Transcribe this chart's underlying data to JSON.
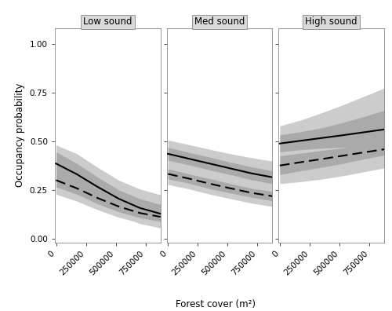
{
  "panels": [
    {
      "title": "Low sound",
      "solid_line": [
        0.385,
        0.33,
        0.265,
        0.205,
        0.158,
        0.128
      ],
      "solid_ci_upper": [
        0.445,
        0.385,
        0.315,
        0.25,
        0.205,
        0.175
      ],
      "solid_ci_lower": [
        0.33,
        0.28,
        0.22,
        0.165,
        0.115,
        0.088
      ],
      "solid_ci2_upper": [
        0.48,
        0.435,
        0.365,
        0.3,
        0.255,
        0.225
      ],
      "solid_ci2_lower": [
        0.285,
        0.235,
        0.175,
        0.12,
        0.078,
        0.055
      ],
      "dashed_line": [
        0.3,
        0.258,
        0.208,
        0.165,
        0.132,
        0.112
      ],
      "dashed_ci_upper": [
        0.335,
        0.288,
        0.238,
        0.192,
        0.158,
        0.138
      ],
      "dashed_ci_lower": [
        0.265,
        0.228,
        0.178,
        0.138,
        0.108,
        0.088
      ],
      "dashed_ci2_upper": [
        0.375,
        0.328,
        0.275,
        0.228,
        0.192,
        0.172
      ],
      "dashed_ci2_lower": [
        0.228,
        0.192,
        0.148,
        0.11,
        0.082,
        0.062
      ]
    },
    {
      "title": "Med sound",
      "solid_line": [
        0.435,
        0.41,
        0.385,
        0.36,
        0.335,
        0.315
      ],
      "solid_ci_upper": [
        0.468,
        0.442,
        0.418,
        0.392,
        0.368,
        0.348
      ],
      "solid_ci_lower": [
        0.402,
        0.378,
        0.352,
        0.328,
        0.302,
        0.282
      ],
      "solid_ci2_upper": [
        0.505,
        0.482,
        0.458,
        0.435,
        0.415,
        0.398
      ],
      "solid_ci2_lower": [
        0.365,
        0.338,
        0.312,
        0.285,
        0.258,
        0.238
      ],
      "dashed_line": [
        0.332,
        0.308,
        0.282,
        0.258,
        0.235,
        0.218
      ],
      "dashed_ci_upper": [
        0.358,
        0.332,
        0.308,
        0.282,
        0.258,
        0.242
      ],
      "dashed_ci_lower": [
        0.306,
        0.284,
        0.256,
        0.234,
        0.212,
        0.194
      ],
      "dashed_ci2_upper": [
        0.388,
        0.362,
        0.338,
        0.315,
        0.292,
        0.275
      ],
      "dashed_ci2_lower": [
        0.278,
        0.255,
        0.228,
        0.205,
        0.182,
        0.165
      ]
    },
    {
      "title": "High sound",
      "solid_line": [
        0.488,
        0.502,
        0.516,
        0.53,
        0.545,
        0.56
      ],
      "solid_ci_upper": [
        0.532,
        0.548,
        0.568,
        0.595,
        0.625,
        0.658
      ],
      "solid_ci_lower": [
        0.445,
        0.456,
        0.464,
        0.468,
        0.468,
        0.468
      ],
      "solid_ci2_upper": [
        0.578,
        0.608,
        0.645,
        0.685,
        0.728,
        0.772
      ],
      "solid_ci2_lower": [
        0.402,
        0.402,
        0.398,
        0.392,
        0.385,
        0.378
      ],
      "dashed_line": [
        0.375,
        0.392,
        0.408,
        0.425,
        0.442,
        0.458
      ],
      "dashed_ci_upper": [
        0.425,
        0.438,
        0.452,
        0.465,
        0.478,
        0.492
      ],
      "dashed_ci_lower": [
        0.328,
        0.348,
        0.366,
        0.385,
        0.408,
        0.428
      ],
      "dashed_ci2_upper": [
        0.478,
        0.502,
        0.525,
        0.548,
        0.572,
        0.598
      ],
      "dashed_ci2_lower": [
        0.282,
        0.292,
        0.305,
        0.322,
        0.342,
        0.362
      ]
    }
  ],
  "x_values": [
    0,
    175000,
    350000,
    525000,
    700000,
    875000
  ],
  "xlim": [
    -10000,
    875000
  ],
  "ylim": [
    -0.02,
    1.08
  ],
  "yticks": [
    0.0,
    0.25,
    0.5,
    0.75,
    1.0
  ],
  "ytick_labels": [
    "0.00",
    "0.25",
    "0.50",
    "0.75",
    "1.00"
  ],
  "xticks": [
    0,
    250000,
    500000,
    750000
  ],
  "xtick_labels": [
    "0",
    "250000",
    "500000",
    "750000"
  ],
  "xlabel": "Forest cover (m²)",
  "ylabel": "Occupancy probability",
  "inner_ci_color": "#aaaaaa",
  "outer_ci_color": "#cccccc",
  "background_color": "#ffffff",
  "panel_header_color": "#d9d9d9",
  "line_color": "#000000",
  "border_color": "#888888",
  "title_fontsize": 8.5,
  "axis_fontsize": 8.5,
  "tick_fontsize": 7.5,
  "line_width": 1.5
}
